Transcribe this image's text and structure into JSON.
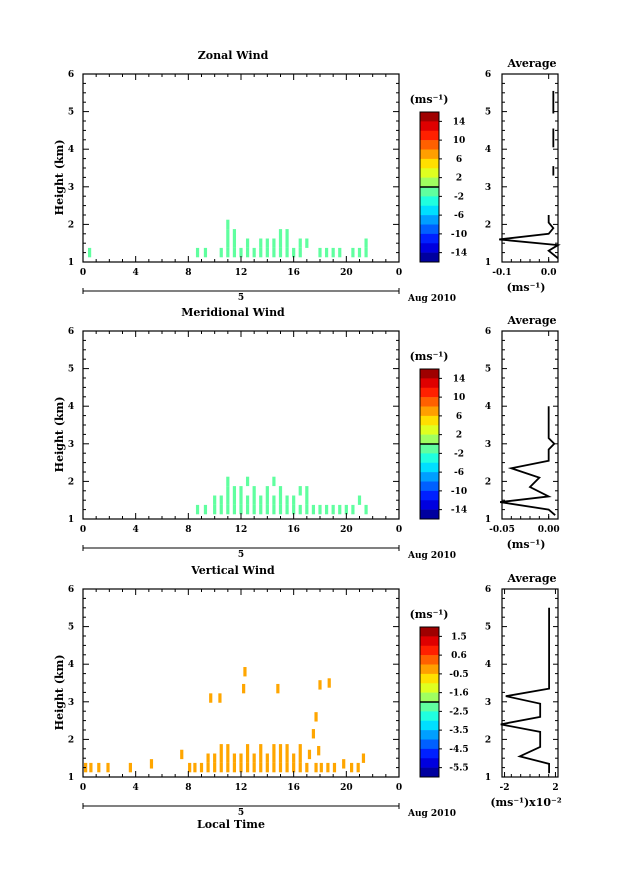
{
  "chart_data": [
    {
      "type": "heatmap",
      "title": "Zonal Wind",
      "ylabel": "Height (km)",
      "xlabel": "",
      "x_ticks": [
        "0",
        "4",
        "8",
        "12",
        "16",
        "20",
        "0"
      ],
      "y_ticks": [
        "1",
        "2",
        "3",
        "4",
        "5",
        "6"
      ],
      "date_label": "Aug 2010",
      "day_label": "5",
      "xlim": [
        0,
        24
      ],
      "ylim": [
        1,
        6
      ],
      "colorbar": {
        "unit": "(ms⁻¹)",
        "labels": [
          "14",
          "10",
          "6",
          "2",
          "-2",
          "-6",
          "-10",
          "-14"
        ],
        "min": -16,
        "max": 16
      },
      "cells": [
        {
          "x": 0.5,
          "y": 1.25,
          "v": -1.0
        },
        {
          "x": 8.7,
          "y": 1.25,
          "v": -1.0
        },
        {
          "x": 9.3,
          "y": 1.25,
          "v": -1.0
        },
        {
          "x": 10.5,
          "y": 1.25,
          "v": -1.0
        },
        {
          "x": 11.0,
          "y": 1.25,
          "v": -1.0
        },
        {
          "x": 11.0,
          "y": 1.5,
          "v": -1.0
        },
        {
          "x": 11.0,
          "y": 1.75,
          "v": -1.0
        },
        {
          "x": 11.0,
          "y": 2.0,
          "v": -1.0
        },
        {
          "x": 11.5,
          "y": 1.25,
          "v": -1.0
        },
        {
          "x": 11.5,
          "y": 1.5,
          "v": -1.0
        },
        {
          "x": 11.5,
          "y": 1.75,
          "v": -1.0
        },
        {
          "x": 12.0,
          "y": 1.25,
          "v": -1.0
        },
        {
          "x": 12.5,
          "y": 1.25,
          "v": -1.0
        },
        {
          "x": 12.5,
          "y": 1.5,
          "v": -1.0
        },
        {
          "x": 13.0,
          "y": 1.25,
          "v": -1.0
        },
        {
          "x": 13.5,
          "y": 1.25,
          "v": -1.0
        },
        {
          "x": 13.5,
          "y": 1.5,
          "v": -1.0
        },
        {
          "x": 14.0,
          "y": 1.25,
          "v": -1.0
        },
        {
          "x": 14.0,
          "y": 1.5,
          "v": -1.0
        },
        {
          "x": 14.5,
          "y": 1.25,
          "v": -1.0
        },
        {
          "x": 14.5,
          "y": 1.5,
          "v": -1.0
        },
        {
          "x": 15.0,
          "y": 1.25,
          "v": -1.0
        },
        {
          "x": 15.0,
          "y": 1.5,
          "v": -1.0
        },
        {
          "x": 15.0,
          "y": 1.75,
          "v": -1.0
        },
        {
          "x": 15.5,
          "y": 1.25,
          "v": -1.0
        },
        {
          "x": 15.5,
          "y": 1.5,
          "v": -1.0
        },
        {
          "x": 15.5,
          "y": 1.75,
          "v": -1.0
        },
        {
          "x": 16.0,
          "y": 1.25,
          "v": -1.0
        },
        {
          "x": 16.5,
          "y": 1.25,
          "v": -1.0
        },
        {
          "x": 16.5,
          "y": 1.5,
          "v": -1.0
        },
        {
          "x": 17.0,
          "y": 1.5,
          "v": -1.0
        },
        {
          "x": 18.0,
          "y": 1.25,
          "v": -1.0
        },
        {
          "x": 18.5,
          "y": 1.25,
          "v": -1.0
        },
        {
          "x": 19.0,
          "y": 1.25,
          "v": -1.0
        },
        {
          "x": 19.5,
          "y": 1.25,
          "v": -1.0
        },
        {
          "x": 20.5,
          "y": 1.25,
          "v": -1.0
        },
        {
          "x": 21.0,
          "y": 1.25,
          "v": -1.0
        },
        {
          "x": 21.5,
          "y": 1.25,
          "v": -1.0
        },
        {
          "x": 21.5,
          "y": 1.5,
          "v": -1.0
        }
      ]
    },
    {
      "type": "heatmap",
      "title": "Meridional Wind",
      "ylabel": "Height (km)",
      "xlabel": "",
      "x_ticks": [
        "0",
        "4",
        "8",
        "12",
        "16",
        "20",
        "0"
      ],
      "y_ticks": [
        "1",
        "2",
        "3",
        "4",
        "5",
        "6"
      ],
      "date_label": "Aug 2010",
      "day_label": "5",
      "xlim": [
        0,
        24
      ],
      "ylim": [
        1,
        6
      ],
      "colorbar": {
        "unit": "(ms⁻¹)",
        "labels": [
          "14",
          "10",
          "6",
          "2",
          "-2",
          "-6",
          "-10",
          "-14"
        ],
        "min": -16,
        "max": 16
      },
      "cells": [
        {
          "x": 8.7,
          "y": 1.25,
          "v": -1.0
        },
        {
          "x": 9.3,
          "y": 1.25,
          "v": -1.0
        },
        {
          "x": 10.0,
          "y": 1.25,
          "v": -1.0
        },
        {
          "x": 10.0,
          "y": 1.5,
          "v": -1.0
        },
        {
          "x": 10.5,
          "y": 1.25,
          "v": -1.0
        },
        {
          "x": 10.5,
          "y": 1.5,
          "v": -1.0
        },
        {
          "x": 11.0,
          "y": 1.25,
          "v": -1.0
        },
        {
          "x": 11.0,
          "y": 1.5,
          "v": -1.0
        },
        {
          "x": 11.0,
          "y": 1.75,
          "v": -1.0
        },
        {
          "x": 11.0,
          "y": 2.0,
          "v": -1.0
        },
        {
          "x": 11.5,
          "y": 1.25,
          "v": -1.0
        },
        {
          "x": 11.5,
          "y": 1.5,
          "v": -1.0
        },
        {
          "x": 11.5,
          "y": 1.75,
          "v": -1.0
        },
        {
          "x": 12.0,
          "y": 1.25,
          "v": -1.0
        },
        {
          "x": 12.0,
          "y": 1.5,
          "v": -1.0
        },
        {
          "x": 12.0,
          "y": 1.75,
          "v": -1.0
        },
        {
          "x": 12.5,
          "y": 1.25,
          "v": -1.0
        },
        {
          "x": 12.5,
          "y": 1.5,
          "v": -1.0
        },
        {
          "x": 12.5,
          "y": 2.0,
          "v": -1.0
        },
        {
          "x": 13.0,
          "y": 1.25,
          "v": -1.0
        },
        {
          "x": 13.0,
          "y": 1.5,
          "v": -1.0
        },
        {
          "x": 13.0,
          "y": 1.75,
          "v": -1.0
        },
        {
          "x": 13.5,
          "y": 1.25,
          "v": -1.0
        },
        {
          "x": 13.5,
          "y": 1.5,
          "v": -1.0
        },
        {
          "x": 14.0,
          "y": 1.25,
          "v": -1.0
        },
        {
          "x": 14.0,
          "y": 1.5,
          "v": -1.0
        },
        {
          "x": 14.0,
          "y": 1.75,
          "v": -1.0
        },
        {
          "x": 14.5,
          "y": 1.25,
          "v": -1.0
        },
        {
          "x": 14.5,
          "y": 1.5,
          "v": -1.0
        },
        {
          "x": 14.5,
          "y": 2.0,
          "v": -1.0
        },
        {
          "x": 15.0,
          "y": 1.25,
          "v": -1.0
        },
        {
          "x": 15.0,
          "y": 1.5,
          "v": -1.0
        },
        {
          "x": 15.0,
          "y": 1.75,
          "v": -1.0
        },
        {
          "x": 15.5,
          "y": 1.25,
          "v": -1.0
        },
        {
          "x": 15.5,
          "y": 1.5,
          "v": -1.0
        },
        {
          "x": 16.0,
          "y": 1.25,
          "v": -1.0
        },
        {
          "x": 16.0,
          "y": 1.5,
          "v": -1.0
        },
        {
          "x": 16.5,
          "y": 1.25,
          "v": -1.0
        },
        {
          "x": 17.0,
          "y": 1.25,
          "v": -1.0
        },
        {
          "x": 17.0,
          "y": 1.5,
          "v": -1.0
        },
        {
          "x": 17.5,
          "y": 1.25,
          "v": -1.0
        },
        {
          "x": 18.0,
          "y": 1.25,
          "v": -1.0
        },
        {
          "x": 18.5,
          "y": 1.25,
          "v": -1.0
        },
        {
          "x": 19.0,
          "y": 1.25,
          "v": -1.0
        },
        {
          "x": 19.5,
          "y": 1.25,
          "v": -1.0
        },
        {
          "x": 20.0,
          "y": 1.25,
          "v": -1.0
        },
        {
          "x": 20.5,
          "y": 1.25,
          "v": -1.0
        },
        {
          "x": 21.0,
          "y": 1.5,
          "v": -1.0
        },
        {
          "x": 21.5,
          "y": 1.25,
          "v": -1.0
        },
        {
          "x": 17.0,
          "y": 1.75,
          "v": -1.0
        },
        {
          "x": 16.5,
          "y": 1.75,
          "v": -1.0
        }
      ]
    },
    {
      "type": "heatmap",
      "title": "Vertical Wind",
      "ylabel": "Height (km)",
      "xlabel": "Local Time",
      "x_ticks": [
        "0",
        "4",
        "8",
        "12",
        "16",
        "20",
        "0"
      ],
      "y_ticks": [
        "1",
        "2",
        "3",
        "4",
        "5",
        "6"
      ],
      "date_label": "Aug 2010",
      "day_label": "5",
      "xlim": [
        0,
        24
      ],
      "ylim": [
        1,
        6
      ],
      "colorbar": {
        "unit": "(ms⁻¹)",
        "labels": [
          "1.5",
          "0.6",
          "-0.5",
          "-1.6",
          "-2.5",
          "-3.5",
          "-4.5",
          "-5.5"
        ],
        "min": -6.0,
        "max": 2.0
      },
      "cells": [
        {
          "x": 0.2,
          "y": 1.25,
          "v": -0.3
        },
        {
          "x": 0.6,
          "y": 1.25,
          "v": -0.3
        },
        {
          "x": 1.2,
          "y": 1.25,
          "v": -0.3
        },
        {
          "x": 1.9,
          "y": 1.25,
          "v": -0.3
        },
        {
          "x": 3.6,
          "y": 1.25,
          "v": -0.3
        },
        {
          "x": 5.2,
          "y": 1.35,
          "v": -0.3
        },
        {
          "x": 7.5,
          "y": 1.6,
          "v": -0.3
        },
        {
          "x": 8.1,
          "y": 1.25,
          "v": -0.3
        },
        {
          "x": 8.5,
          "y": 1.25,
          "v": -0.3
        },
        {
          "x": 9.0,
          "y": 1.25,
          "v": -0.3
        },
        {
          "x": 9.5,
          "y": 1.25,
          "v": -0.3
        },
        {
          "x": 9.5,
          "y": 1.5,
          "v": -0.3
        },
        {
          "x": 10.0,
          "y": 1.25,
          "v": -0.3
        },
        {
          "x": 10.0,
          "y": 1.5,
          "v": -0.3
        },
        {
          "x": 10.5,
          "y": 1.25,
          "v": -0.3
        },
        {
          "x": 10.5,
          "y": 1.5,
          "v": -0.3
        },
        {
          "x": 10.5,
          "y": 1.75,
          "v": -0.3
        },
        {
          "x": 11.0,
          "y": 1.25,
          "v": -0.3
        },
        {
          "x": 11.0,
          "y": 1.5,
          "v": -0.3
        },
        {
          "x": 11.0,
          "y": 1.75,
          "v": -0.3
        },
        {
          "x": 11.5,
          "y": 1.25,
          "v": -0.3
        },
        {
          "x": 11.5,
          "y": 1.5,
          "v": -0.3
        },
        {
          "x": 12.0,
          "y": 1.25,
          "v": -0.3
        },
        {
          "x": 12.0,
          "y": 1.5,
          "v": -0.3
        },
        {
          "x": 12.5,
          "y": 1.25,
          "v": -0.3
        },
        {
          "x": 12.5,
          "y": 1.5,
          "v": -0.3
        },
        {
          "x": 12.5,
          "y": 1.75,
          "v": -0.3
        },
        {
          "x": 13.0,
          "y": 1.25,
          "v": -0.3
        },
        {
          "x": 13.0,
          "y": 1.5,
          "v": -0.3
        },
        {
          "x": 13.5,
          "y": 1.25,
          "v": -0.3
        },
        {
          "x": 13.5,
          "y": 1.5,
          "v": -0.3
        },
        {
          "x": 13.5,
          "y": 1.75,
          "v": -0.3
        },
        {
          "x": 14.0,
          "y": 1.25,
          "v": -0.3
        },
        {
          "x": 14.0,
          "y": 1.5,
          "v": -0.3
        },
        {
          "x": 14.5,
          "y": 1.25,
          "v": -0.3
        },
        {
          "x": 14.5,
          "y": 1.5,
          "v": -0.3
        },
        {
          "x": 14.5,
          "y": 1.75,
          "v": -0.3
        },
        {
          "x": 15.0,
          "y": 1.25,
          "v": -0.3
        },
        {
          "x": 15.0,
          "y": 1.5,
          "v": -0.3
        },
        {
          "x": 15.0,
          "y": 1.75,
          "v": -0.3
        },
        {
          "x": 15.5,
          "y": 1.25,
          "v": -0.3
        },
        {
          "x": 15.5,
          "y": 1.5,
          "v": -0.3
        },
        {
          "x": 15.5,
          "y": 1.75,
          "v": -0.3
        },
        {
          "x": 16.0,
          "y": 1.25,
          "v": -0.3
        },
        {
          "x": 16.0,
          "y": 1.5,
          "v": -0.3
        },
        {
          "x": 16.5,
          "y": 1.25,
          "v": -0.3
        },
        {
          "x": 16.5,
          "y": 1.5,
          "v": -0.3
        },
        {
          "x": 16.5,
          "y": 1.75,
          "v": -0.3
        },
        {
          "x": 17.0,
          "y": 1.25,
          "v": -0.3
        },
        {
          "x": 17.2,
          "y": 1.6,
          "v": -0.3
        },
        {
          "x": 17.7,
          "y": 1.25,
          "v": -0.3
        },
        {
          "x": 18.1,
          "y": 1.25,
          "v": -0.3
        },
        {
          "x": 18.6,
          "y": 1.25,
          "v": -0.3
        },
        {
          "x": 19.1,
          "y": 1.25,
          "v": -0.3
        },
        {
          "x": 19.8,
          "y": 1.35,
          "v": -0.3
        },
        {
          "x": 20.4,
          "y": 1.25,
          "v": -0.3
        },
        {
          "x": 20.9,
          "y": 1.25,
          "v": -0.3
        },
        {
          "x": 21.3,
          "y": 1.5,
          "v": -0.3
        },
        {
          "x": 9.7,
          "y": 3.1,
          "v": -0.3
        },
        {
          "x": 10.4,
          "y": 3.1,
          "v": -0.3
        },
        {
          "x": 12.3,
          "y": 3.8,
          "v": -0.3
        },
        {
          "x": 12.2,
          "y": 3.35,
          "v": -0.3
        },
        {
          "x": 14.8,
          "y": 3.35,
          "v": -0.3
        },
        {
          "x": 17.7,
          "y": 2.6,
          "v": -0.3
        },
        {
          "x": 17.5,
          "y": 2.15,
          "v": -0.3
        },
        {
          "x": 17.9,
          "y": 1.7,
          "v": -0.3
        },
        {
          "x": 18.0,
          "y": 3.45,
          "v": -0.3
        },
        {
          "x": 18.7,
          "y": 3.5,
          "v": -0.3
        }
      ]
    },
    {
      "type": "line",
      "title": "Average",
      "xlabel": "(ms⁻¹)",
      "x_ticks": [
        "-0.1",
        "0.0"
      ],
      "y_ticks": [
        "1",
        "2",
        "3",
        "4",
        "5",
        "6"
      ],
      "xlim": [
        -0.1,
        0.02
      ],
      "ylim": [
        1,
        6
      ],
      "segments": [
        [
          {
            "x": 0.02,
            "y": 1.1
          },
          {
            "x": 0.0,
            "y": 1.3
          },
          {
            "x": 0.02,
            "y": 1.45
          },
          {
            "x": -0.11,
            "y": 1.6
          },
          {
            "x": 0.0,
            "y": 1.75
          },
          {
            "x": 0.01,
            "y": 1.9
          },
          {
            "x": 0.0,
            "y": 2.05
          },
          {
            "x": 0.0,
            "y": 2.25
          }
        ],
        [
          {
            "x": 0.01,
            "y": 3.3
          },
          {
            "x": 0.01,
            "y": 3.55
          }
        ],
        [
          {
            "x": 0.01,
            "y": 4.05
          },
          {
            "x": 0.01,
            "y": 4.55
          }
        ],
        [
          {
            "x": 0.01,
            "y": 4.95
          },
          {
            "x": 0.01,
            "y": 5.55
          }
        ]
      ]
    },
    {
      "type": "line",
      "title": "Average",
      "xlabel": "(ms⁻¹)",
      "x_ticks": [
        "-0.05",
        "0.00"
      ],
      "y_ticks": [
        "1",
        "2",
        "3",
        "4",
        "5",
        "6"
      ],
      "xlim": [
        -0.05,
        0.01
      ],
      "ylim": [
        1,
        6
      ],
      "segments": [
        [
          {
            "x": 0.007,
            "y": 1.1
          },
          {
            "x": 0.0,
            "y": 1.25
          },
          {
            "x": -0.052,
            "y": 1.45
          },
          {
            "x": 0.0,
            "y": 1.6
          },
          {
            "x": -0.02,
            "y": 1.85
          },
          {
            "x": -0.01,
            "y": 2.1
          },
          {
            "x": -0.04,
            "y": 2.35
          },
          {
            "x": -0.01,
            "y": 2.5
          },
          {
            "x": 0.0,
            "y": 2.55
          },
          {
            "x": 0.0,
            "y": 2.85
          },
          {
            "x": 0.006,
            "y": 3.0
          },
          {
            "x": 0.0,
            "y": 3.15
          },
          {
            "x": 0.0,
            "y": 3.5
          },
          {
            "x": 0.0,
            "y": 4.0
          }
        ]
      ]
    },
    {
      "type": "line",
      "title": "Average",
      "xlabel": "(ms⁻¹)x10⁻²",
      "x_ticks": [
        "-2",
        "2"
      ],
      "y_ticks": [
        "1",
        "2",
        "3",
        "4",
        "5",
        "6"
      ],
      "xlim": [
        -2.2,
        2.2
      ],
      "ylim": [
        1,
        6
      ],
      "segments": [
        [
          {
            "x": 1.5,
            "y": 1.1
          },
          {
            "x": 1.5,
            "y": 1.35
          },
          {
            "x": -0.8,
            "y": 1.55
          },
          {
            "x": 0.8,
            "y": 1.8
          },
          {
            "x": 0.8,
            "y": 2.2
          },
          {
            "x": -2.3,
            "y": 2.4
          },
          {
            "x": 0.8,
            "y": 2.6
          },
          {
            "x": 0.8,
            "y": 2.95
          },
          {
            "x": -1.9,
            "y": 3.15
          },
          {
            "x": 1.5,
            "y": 3.35
          },
          {
            "x": 1.5,
            "y": 5.5
          }
        ]
      ]
    }
  ]
}
